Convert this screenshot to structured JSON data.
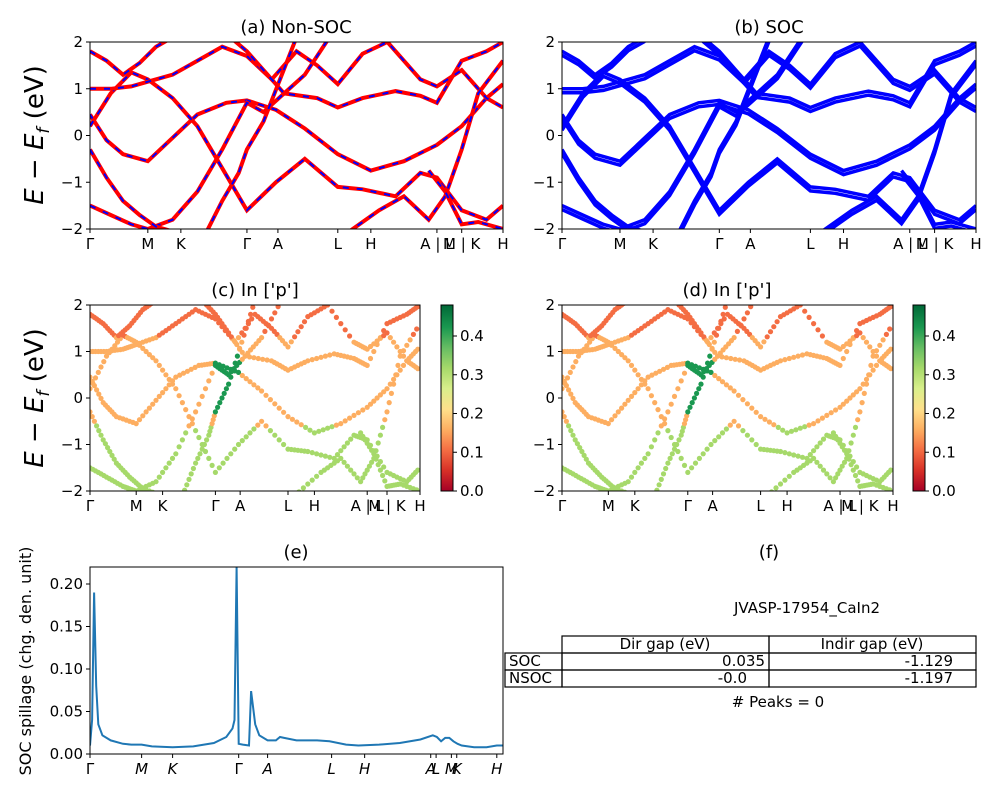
{
  "colors": {
    "nsoc_line": "#ff0000",
    "nsoc_dash": "#0000ff",
    "soc_line": "#0000ff",
    "spillage_line": "#1f77b4",
    "colormap": [
      "#a50026",
      "#d73027",
      "#f46d43",
      "#fdae61",
      "#fee08b",
      "#d9ef8b",
      "#a6d96a",
      "#66bd63",
      "#1a9850",
      "#006837"
    ]
  },
  "kpath": {
    "labels": [
      "Γ",
      "M",
      "K",
      "Γ",
      "A",
      "L",
      "H",
      "A | L",
      "M | K",
      "H"
    ],
    "positions": [
      0,
      0.14,
      0.22,
      0.38,
      0.455,
      0.6,
      0.68,
      0.84,
      0.9,
      1.0
    ]
  },
  "ylabels": {
    "energy_row1": "E − E_f (eV)",
    "energy_row2": "E − E_f (eV)",
    "spillage": "SOC spillage (chg. den. unit)"
  },
  "chart_data": [
    {
      "id": "a",
      "type": "line",
      "title": "(a) Non-SOC",
      "xlabel": "",
      "ylabel": "E − E_f (eV)",
      "ylim": [
        -2,
        2
      ],
      "yticks": [
        "2",
        "1",
        "0",
        "−1",
        "−2"
      ],
      "xticks": [
        "Γ",
        "M",
        "K",
        "Γ",
        "A",
        "L",
        "H",
        "A | L",
        "M | K",
        "H"
      ],
      "description_series": "band structure, red lines with blue dashes"
    },
    {
      "id": "b",
      "type": "line",
      "title": "(b) SOC",
      "ylim": [
        -2,
        2
      ],
      "yticks": [
        "2",
        "1",
        "0",
        "−1",
        "−2"
      ],
      "xticks": [
        "Γ",
        "M",
        "K",
        "Γ",
        "A",
        "L",
        "H",
        "A | L",
        "M | K",
        "H"
      ]
    },
    {
      "id": "c",
      "type": "scatter",
      "title": "(c)  In ['p']",
      "ylim": [
        -2,
        2
      ],
      "yticks": [
        "2",
        "1",
        "0",
        "−1",
        "−2"
      ],
      "xticks": [
        "Γ",
        "M",
        "K",
        "Γ",
        "A",
        "L",
        "H",
        "A | L",
        "M | K",
        "H"
      ],
      "colorbar": {
        "min": 0.0,
        "max": 0.48,
        "ticks": [
          "0.4",
          "0.3",
          "0.2",
          "0.1",
          "0.0"
        ],
        "tick_values": [
          0.4,
          0.3,
          0.2,
          0.1,
          0.0
        ]
      }
    },
    {
      "id": "d",
      "type": "scatter",
      "title": "(d) In ['p']",
      "ylim": [
        -2,
        2
      ],
      "yticks": [
        "2",
        "1",
        "0",
        "−1",
        "−2"
      ],
      "xticks": [
        "Γ",
        "M",
        "K",
        "Γ",
        "A",
        "L",
        "H",
        "A | L",
        "M | K",
        "H"
      ],
      "colorbar": {
        "min": 0.0,
        "max": 0.48,
        "ticks": [
          "0.4",
          "0.3",
          "0.2",
          "0.1",
          "0.0"
        ],
        "tick_values": [
          0.4,
          0.3,
          0.2,
          0.1,
          0.0
        ]
      }
    },
    {
      "id": "e",
      "type": "line",
      "title": "(e)",
      "ylabel": "SOC spillage (chg. den. unit)",
      "ylim": [
        0,
        0.22
      ],
      "yticks": [
        "0.20",
        "0.15",
        "0.10",
        "0.05",
        "0.00"
      ],
      "ytick_values": [
        0.2,
        0.15,
        0.1,
        0.05,
        0.0
      ],
      "xticks": [
        "Γ",
        "M",
        "K",
        "Γ",
        "A",
        "L",
        "H",
        "A",
        "L",
        "M",
        "K",
        "H"
      ],
      "xtick_positions": [
        0,
        0.125,
        0.2,
        0.36,
        0.43,
        0.585,
        0.665,
        0.825,
        0.838,
        0.875,
        0.888,
        0.985
      ],
      "series": [
        {
          "x": [
            0,
            0.005,
            0.01,
            0.015,
            0.02,
            0.03,
            0.05,
            0.08,
            0.1,
            0.125,
            0.15,
            0.2,
            0.25,
            0.3,
            0.33,
            0.345,
            0.35,
            0.355,
            0.36,
            0.37,
            0.385,
            0.39,
            0.4,
            0.41,
            0.43,
            0.45,
            0.46,
            0.47,
            0.5,
            0.55,
            0.58,
            0.62,
            0.65,
            0.7,
            0.75,
            0.8,
            0.83,
            0.84,
            0.85,
            0.86,
            0.87,
            0.88,
            0.89,
            0.9,
            0.93,
            0.96,
            0.985,
            1.0
          ],
          "y": [
            0.01,
            0.04,
            0.19,
            0.08,
            0.035,
            0.022,
            0.016,
            0.012,
            0.011,
            0.011,
            0.009,
            0.008,
            0.009,
            0.013,
            0.02,
            0.03,
            0.04,
            0.22,
            0.012,
            0.011,
            0.01,
            0.074,
            0.035,
            0.022,
            0.016,
            0.016,
            0.02,
            0.019,
            0.016,
            0.016,
            0.015,
            0.011,
            0.01,
            0.011,
            0.013,
            0.017,
            0.022,
            0.02,
            0.015,
            0.019,
            0.019,
            0.015,
            0.012,
            0.01,
            0.008,
            0.008,
            0.01,
            0.01
          ]
        }
      ]
    },
    {
      "id": "f",
      "type": "table",
      "title": "(f)",
      "subtitle": "JVASP-17954_CaIn2",
      "columns": [
        "Dir gap (eV)",
        "Indir gap (eV)"
      ],
      "rows": [
        {
          "label": "SOC",
          "dir": "0.035",
          "indir": "-1.129"
        },
        {
          "label": "NSOC",
          "dir": "-0.0",
          "indir": "-1.197"
        }
      ],
      "peaks_label": "# Peaks = 0"
    }
  ]
}
